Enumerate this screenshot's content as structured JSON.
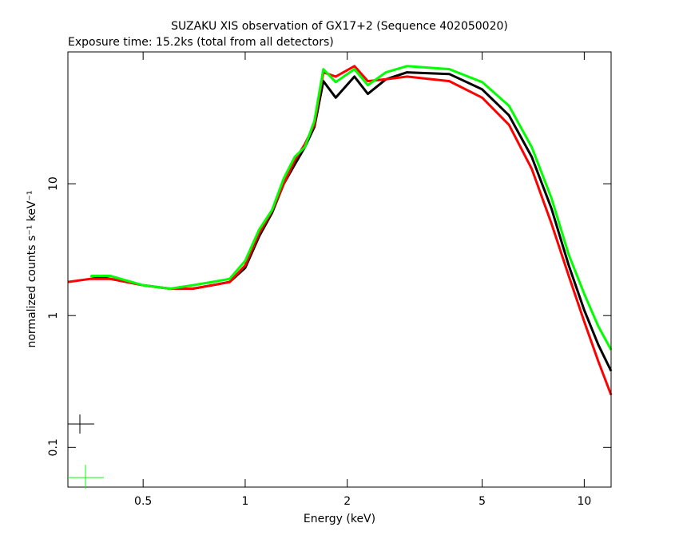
{
  "chart_data": {
    "type": "line",
    "title": "SUZAKU XIS observation of GX17+2 (Sequence 402050020)",
    "subtitle": "Exposure time: 15.2ks (total from all detectors)",
    "xlabel": "Energy (keV)",
    "ylabel": "normalized counts s⁻¹ keV⁻¹",
    "xscale": "log",
    "yscale": "log",
    "xlim": [
      0.3,
      12
    ],
    "ylim": [
      0.05,
      100
    ],
    "xticks": [
      0.5,
      1,
      2,
      5,
      10
    ],
    "yticks": [
      0.1,
      1,
      10
    ],
    "series": [
      {
        "color": "#000000",
        "x": [
          0.35,
          0.4,
          0.5,
          0.6,
          0.7,
          0.8,
          0.9,
          1.0,
          1.1,
          1.2,
          1.3,
          1.4,
          1.5,
          1.6,
          1.7,
          1.85,
          2.1,
          2.3,
          2.6,
          3,
          4,
          5,
          6,
          7,
          8,
          9,
          10,
          11,
          12
        ],
        "values": [
          2.0,
          1.9,
          1.7,
          1.6,
          1.6,
          1.7,
          1.8,
          2.3,
          4.0,
          6.0,
          10,
          14,
          19,
          27,
          60,
          45,
          65,
          48,
          62,
          70,
          68,
          52,
          33,
          16,
          6.5,
          2.4,
          1.1,
          0.6,
          0.38
        ]
      },
      {
        "color": "#ff0000",
        "x": [
          0.3,
          0.35,
          0.4,
          0.5,
          0.6,
          0.7,
          0.8,
          0.9,
          1.0,
          1.1,
          1.2,
          1.3,
          1.4,
          1.5,
          1.6,
          1.7,
          1.85,
          2.1,
          2.3,
          2.6,
          3,
          4,
          5,
          6,
          7,
          8,
          9,
          10,
          11,
          12
        ],
        "values": [
          1.8,
          1.9,
          1.9,
          1.7,
          1.6,
          1.6,
          1.7,
          1.8,
          2.4,
          4.2,
          6.2,
          10,
          15,
          20,
          28,
          70,
          65,
          78,
          60,
          62,
          65,
          60,
          45,
          28,
          13,
          5,
          2.0,
          0.9,
          0.45,
          0.25
        ]
      },
      {
        "color": "#00ff00",
        "x": [
          0.35,
          0.4,
          0.5,
          0.6,
          0.7,
          0.8,
          0.9,
          1.0,
          1.1,
          1.2,
          1.3,
          1.4,
          1.5,
          1.6,
          1.7,
          1.85,
          2.1,
          2.3,
          2.6,
          3,
          4,
          5,
          6,
          7,
          8,
          9,
          10,
          11,
          12
        ],
        "values": [
          2.0,
          2.0,
          1.7,
          1.6,
          1.7,
          1.8,
          1.9,
          2.6,
          4.5,
          6.3,
          11,
          16,
          19,
          30,
          74,
          59,
          74,
          56,
          70,
          78,
          74,
          59,
          39,
          19,
          7.8,
          2.9,
          1.46,
          0.83,
          0.55
        ]
      }
    ]
  }
}
